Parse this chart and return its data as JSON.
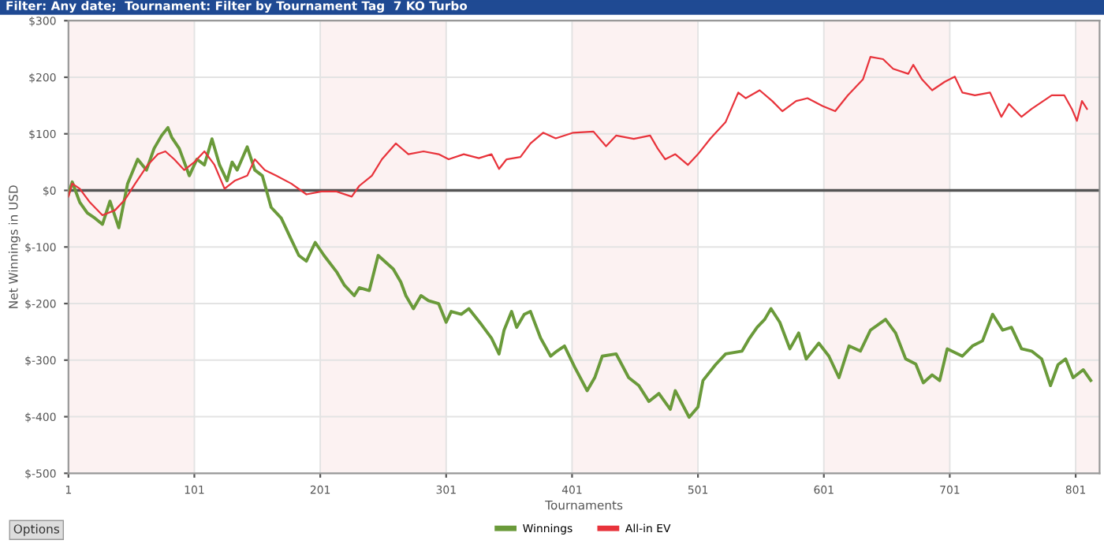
{
  "chart_data": {
    "type": "line",
    "title": "Filter: Any date;  Tournament: Filter by Tournament Tag  7 KO Turbo",
    "xlabel": "Tournaments",
    "ylabel": "Net Winnings in USD",
    "annotations": [
      "Options"
    ],
    "xlim": [
      1,
      820
    ],
    "xticks": [
      1,
      101,
      201,
      301,
      401,
      501,
      601,
      701,
      801
    ],
    "ylim": [
      -500,
      300
    ],
    "yticks": [
      {
        "value": 300,
        "label": "$300"
      },
      {
        "value": 200,
        "label": "$200"
      },
      {
        "value": 100,
        "label": "$100"
      },
      {
        "value": 0,
        "label": "$0"
      },
      {
        "value": -100,
        "label": "$-100"
      },
      {
        "value": -200,
        "label": "$-200"
      },
      {
        "value": -300,
        "label": "$-300"
      },
      {
        "value": -400,
        "label": "$-400"
      },
      {
        "value": -500,
        "label": "$-500"
      }
    ],
    "grid": true,
    "legend": "bottom",
    "marker": "none",
    "line_style": "solid",
    "ref_lines": [
      {
        "axis": "y",
        "value": 0,
        "color": "#555555",
        "line_style": "solid"
      }
    ],
    "bands": [
      {
        "axis": "x",
        "from": 1,
        "to": 101,
        "color": "#fcf2f2"
      },
      {
        "axis": "x",
        "from": 201,
        "to": 301,
        "color": "#fcf2f2"
      },
      {
        "axis": "x",
        "from": 401,
        "to": 501,
        "color": "#fcf2f2"
      },
      {
        "axis": "x",
        "from": 601,
        "to": 701,
        "color": "#fcf2f2"
      },
      {
        "axis": "x",
        "from": 801,
        "to": 820,
        "color": "#fcf2f2"
      }
    ],
    "series": [
      {
        "name": "Winnings",
        "color": "#6a9a3a",
        "x": [
          1,
          4,
          10,
          16,
          22,
          28,
          34,
          41,
          48,
          56,
          63,
          69,
          75,
          80,
          83,
          89,
          97,
          103,
          109,
          115,
          121,
          127,
          131,
          135,
          143,
          149,
          155,
          162,
          170,
          178,
          184,
          190,
          197,
          204,
          214,
          220,
          228,
          232,
          240,
          247,
          259,
          265,
          269,
          275,
          281,
          287,
          295,
          301,
          305,
          313,
          319,
          329,
          337,
          343,
          347,
          353,
          357,
          363,
          368,
          376,
          384,
          389,
          395,
          403,
          413,
          419,
          425,
          436,
          446,
          454,
          462,
          470,
          479,
          483,
          494,
          501,
          505,
          515,
          523,
          536,
          542,
          548,
          554,
          559,
          566,
          574,
          581,
          587,
          597,
          605,
          613,
          621,
          630,
          638,
          650,
          658,
          666,
          674,
          680,
          687,
          693,
          699,
          711,
          719,
          727,
          735,
          743,
          750,
          758,
          766,
          774,
          781,
          787,
          793,
          799,
          807,
          813
        ],
        "values": [
          -7,
          15,
          -21,
          -40,
          -49,
          -60,
          -19,
          -66,
          12,
          55,
          36,
          74,
          97,
          111,
          94,
          74,
          26,
          55,
          45,
          91,
          45,
          17,
          50,
          36,
          77,
          36,
          26,
          -30,
          -49,
          -87,
          -115,
          -125,
          -92,
          -115,
          -144,
          -167,
          -186,
          -172,
          -177,
          -115,
          -139,
          -162,
          -186,
          -209,
          -186,
          -195,
          -200,
          -233,
          -214,
          -219,
          -209,
          -237,
          -261,
          -289,
          -247,
          -214,
          -242,
          -219,
          -214,
          -261,
          -293,
          -284,
          -275,
          -312,
          -354,
          -331,
          -293,
          -289,
          -331,
          -345,
          -373,
          -359,
          -387,
          -354,
          -401,
          -383,
          -336,
          -308,
          -289,
          -284,
          -261,
          -242,
          -228,
          -209,
          -233,
          -280,
          -252,
          -298,
          -270,
          -293,
          -331,
          -275,
          -284,
          -247,
          -228,
          -252,
          -298,
          -307,
          -340,
          -326,
          -336,
          -280,
          -293,
          -275,
          -266,
          -219,
          -247,
          -242,
          -280,
          -284,
          -298,
          -345,
          -308,
          -298,
          -331,
          -317,
          -336
        ]
      },
      {
        "name": "All-in EV",
        "color": "#e8333b",
        "x": [
          1,
          4,
          10,
          18,
          28,
          38,
          46,
          54,
          64,
          72,
          78,
          85,
          93,
          101,
          109,
          117,
          125,
          133,
          143,
          149,
          157,
          166,
          178,
          190,
          202,
          214,
          226,
          232,
          242,
          250,
          261,
          271,
          283,
          295,
          303,
          315,
          327,
          337,
          343,
          349,
          360,
          368,
          378,
          388,
          402,
          418,
          428,
          436,
          450,
          463,
          469,
          475,
          483,
          493,
          501,
          511,
          523,
          533,
          539,
          550,
          560,
          568,
          579,
          588,
          600,
          610,
          620,
          632,
          638,
          648,
          656,
          668,
          672,
          679,
          687,
          697,
          705,
          711,
          721,
          733,
          742,
          748,
          758,
          766,
          782,
          792,
          798,
          802,
          806,
          810
        ],
        "values": [
          -11,
          12,
          3,
          -21,
          -44,
          -35,
          -16,
          12,
          45,
          64,
          69,
          55,
          36,
          50,
          69,
          45,
          3,
          17,
          26,
          55,
          36,
          26,
          12,
          -7,
          -2,
          -2,
          -11,
          8,
          26,
          55,
          83,
          64,
          69,
          64,
          55,
          64,
          57,
          64,
          38,
          55,
          59,
          83,
          102,
          92,
          102,
          104,
          78,
          97,
          91,
          97,
          74,
          55,
          64,
          45,
          64,
          92,
          121,
          173,
          163,
          177,
          158,
          140,
          158,
          163,
          149,
          140,
          168,
          196,
          236,
          232,
          215,
          206,
          222,
          196,
          177,
          192,
          201,
          173,
          168,
          173,
          130,
          153,
          130,
          144,
          168,
          168,
          144,
          123,
          158,
          144
        ]
      }
    ]
  }
}
